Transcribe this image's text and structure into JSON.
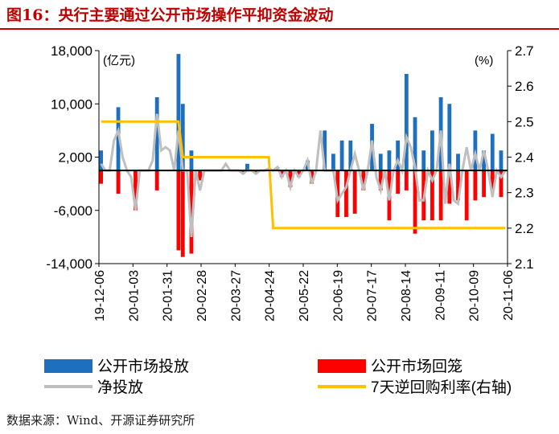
{
  "figure": {
    "title": "图16：央行主要通过公开市场操作平抑资金波动",
    "source": "数据来源：Wind、开源证券研究所"
  },
  "colors": {
    "injection": "#1f6fbf",
    "withdrawal": "#ff0000",
    "net": "#bfbfbf",
    "rate": "#ffc000",
    "title": "#c00000"
  },
  "chart_data": {
    "type": "bar",
    "left_unit_label": "(亿元)",
    "right_unit_label": "(%)",
    "y_left": {
      "min": -14000,
      "max": 18000,
      "ticks": [
        18000,
        10000,
        2000,
        -6000,
        -14000
      ],
      "tick_labels": [
        "18,000",
        "10,000",
        "2,000",
        "-6,000",
        "-14,000"
      ]
    },
    "y_right": {
      "min": 2.1,
      "max": 2.7,
      "ticks": [
        2.7,
        2.6,
        2.5,
        2.4,
        2.3,
        2.2,
        2.1
      ],
      "tick_labels": [
        "2.7",
        "2.6",
        "2.5",
        "2.4",
        "2.3",
        "2.2",
        "2.1"
      ]
    },
    "x_tick_labels": [
      "19-12-06",
      "20-01-03",
      "20-01-31",
      "20-02-28",
      "20-03-27",
      "20-04-24",
      "20-05-22",
      "20-06-19",
      "20-07-17",
      "20-08-14",
      "20-09-11",
      "20-10-09",
      "20-11-06"
    ],
    "legend": [
      {
        "label": "公开市场投放",
        "type": "bar",
        "color_key": "injection"
      },
      {
        "label": "公开市场回笼",
        "type": "bar",
        "color_key": "withdrawal"
      },
      {
        "label": "净投放",
        "type": "line",
        "color_key": "net"
      },
      {
        "label": "7天逆回购利率(右轴)",
        "type": "line",
        "color_key": "rate"
      }
    ],
    "series": [
      {
        "name": "公开市场投放",
        "values": [
          3000,
          0,
          0,
          0,
          9500,
          0,
          0,
          0,
          0,
          0,
          0,
          0,
          0,
          11000,
          0,
          0,
          0,
          0,
          17500,
          10000,
          0,
          3000,
          0,
          0,
          0,
          0,
          0,
          0,
          0,
          0,
          0,
          0,
          0,
          0,
          1000,
          0,
          0,
          0,
          0,
          300,
          0,
          500,
          0,
          0,
          0,
          0,
          0,
          0,
          1500,
          0,
          0,
          0,
          6000,
          0,
          2500,
          0,
          4500,
          0,
          4500,
          0,
          0,
          0,
          0,
          7000,
          0,
          2500,
          0,
          3000,
          0,
          4500,
          0,
          14500,
          0,
          8000,
          0,
          3000,
          0,
          6000,
          0,
          11000,
          0,
          10000,
          0,
          2500,
          0,
          0,
          0,
          6000,
          0,
          3000,
          0,
          5500,
          0,
          3000,
          0
        ]
      },
      {
        "name": "公开市场回笼",
        "values": [
          -2000,
          0,
          0,
          0,
          -3500,
          0,
          0,
          0,
          -6000,
          0,
          0,
          0,
          0,
          -3000,
          0,
          0,
          0,
          0,
          -12000,
          -13000,
          0,
          -12500,
          0,
          -1500,
          0,
          0,
          0,
          0,
          0,
          0,
          0,
          0,
          0,
          -500,
          0,
          0,
          -500,
          0,
          0,
          0,
          0,
          0,
          -1000,
          0,
          -2500,
          0,
          -1000,
          0,
          0,
          -2000,
          0,
          0,
          0,
          0,
          0,
          -7000,
          0,
          -7000,
          0,
          -6500,
          0,
          -3000,
          0,
          0,
          0,
          -3000,
          0,
          -7500,
          0,
          -3500,
          0,
          -3000,
          0,
          -9500,
          0,
          -7500,
          0,
          -7500,
          0,
          -7500,
          0,
          -5000,
          0,
          -4500,
          0,
          -7500,
          0,
          -4500,
          0,
          -4000,
          0,
          -3000,
          0,
          -4000,
          0,
          -5500
        ]
      },
      {
        "name": "净投放",
        "values": [
          1000,
          0,
          0,
          4500,
          6000,
          2000,
          0,
          -1000,
          -6000,
          0,
          0,
          0,
          1500,
          8500,
          3000,
          3500,
          3000,
          0,
          6000,
          0,
          0,
          -10000,
          0,
          -3000,
          0,
          0,
          0,
          0,
          0,
          1000,
          0,
          0,
          0,
          -500,
          0,
          0,
          -500,
          0,
          0,
          300,
          0,
          500,
          -1000,
          0,
          -2500,
          0,
          -1000,
          0,
          1500,
          -2000,
          0,
          6000,
          0,
          0,
          0,
          -4500,
          -3500,
          -2500,
          0,
          2500,
          0,
          -3000,
          0,
          4500,
          -1000,
          -3000,
          0,
          -4500,
          0,
          1500,
          0,
          5000,
          3500,
          500,
          -4500,
          -4500,
          0,
          -1500,
          0,
          6000,
          -5000,
          1000,
          -4500,
          -5000,
          0,
          3500,
          0,
          2500,
          0,
          3000,
          0,
          -4000,
          0,
          -1000,
          0,
          -6500
        ]
      },
      {
        "name": "7天逆回购利率(右轴)",
        "values": [
          2.5,
          2.5,
          2.5,
          2.5,
          2.5,
          2.5,
          2.5,
          2.5,
          2.5,
          2.5,
          2.5,
          2.5,
          2.5,
          2.5,
          2.5,
          2.5,
          2.5,
          2.5,
          2.5,
          2.4,
          2.4,
          2.4,
          2.4,
          2.4,
          2.4,
          2.4,
          2.4,
          2.4,
          2.4,
          2.4,
          2.4,
          2.4,
          2.4,
          2.4,
          2.4,
          2.4,
          2.4,
          2.4,
          2.4,
          2.4,
          2.2,
          2.2,
          2.2,
          2.2,
          2.2,
          2.2,
          2.2,
          2.2,
          2.2,
          2.2,
          2.2,
          2.2,
          2.2,
          2.2,
          2.2,
          2.2,
          2.2,
          2.2,
          2.2,
          2.2,
          2.2,
          2.2,
          2.2,
          2.2,
          2.2,
          2.2,
          2.2,
          2.2,
          2.2,
          2.2,
          2.2,
          2.2,
          2.2,
          2.2,
          2.2,
          2.2,
          2.2,
          2.2,
          2.2,
          2.2,
          2.2,
          2.2,
          2.2,
          2.2,
          2.2,
          2.2,
          2.2,
          2.2,
          2.2,
          2.2,
          2.2,
          2.2,
          2.2,
          2.2,
          2.2,
          2.2
        ]
      }
    ]
  }
}
